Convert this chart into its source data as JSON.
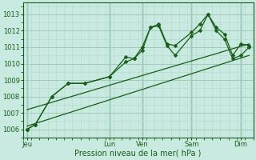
{
  "background_color": "#c8eae0",
  "grid_color_major": "#a0ccbc",
  "grid_color_minor": "#b8ddd0",
  "line_color": "#1a5c1a",
  "title": "Pression niveau de la mer( hPa )",
  "ylim": [
    1005.5,
    1013.7
  ],
  "yticks": [
    1006,
    1007,
    1008,
    1009,
    1010,
    1011,
    1012,
    1013
  ],
  "day_labels": [
    "Jeu",
    "Lun",
    "Ven",
    "Sam",
    "Dim"
  ],
  "day_positions": [
    0.5,
    10.5,
    14.5,
    20.5,
    26.5
  ],
  "vline_positions": [
    0.5,
    10.5,
    14.5,
    20.5,
    26.5
  ],
  "xmin": 0,
  "xmax": 28,
  "series1_x": [
    0.5,
    1.5,
    3.5,
    5.5,
    7.5,
    10.5,
    12.5,
    13.5,
    14.5,
    15.5,
    16.5,
    17.5,
    18.5,
    20.5,
    21.5,
    22.5,
    23.5,
    24.5,
    25.5,
    26.5,
    27.5
  ],
  "series1_y": [
    1006.0,
    1006.3,
    1008.0,
    1008.8,
    1008.8,
    1009.2,
    1010.4,
    1010.3,
    1010.8,
    1012.2,
    1012.4,
    1011.2,
    1011.1,
    1011.9,
    1012.4,
    1013.0,
    1012.2,
    1011.8,
    1010.5,
    1011.2,
    1011.1
  ],
  "series2_x": [
    0.5,
    1.5,
    3.5,
    5.5,
    7.5,
    10.5,
    12.5,
    13.5,
    14.5,
    15.5,
    16.5,
    17.5,
    18.5,
    20.5,
    21.5,
    22.5,
    23.5,
    24.5,
    25.5,
    26.5,
    27.5
  ],
  "series2_y": [
    1006.0,
    1006.3,
    1008.0,
    1008.8,
    1008.8,
    1009.2,
    1010.1,
    1010.3,
    1011.0,
    1012.2,
    1012.3,
    1011.1,
    1010.5,
    1011.7,
    1012.0,
    1013.0,
    1012.0,
    1011.5,
    1010.3,
    1010.5,
    1011.0
  ],
  "trend_x": [
    0.5,
    27.5
  ],
  "trend_y": [
    1006.2,
    1010.5
  ],
  "trend2_x": [
    0.5,
    27.5
  ],
  "trend2_y": [
    1007.2,
    1011.2
  ],
  "title_fontsize": 7.0,
  "tick_fontsize": 6.0,
  "marker_size": 2.5
}
